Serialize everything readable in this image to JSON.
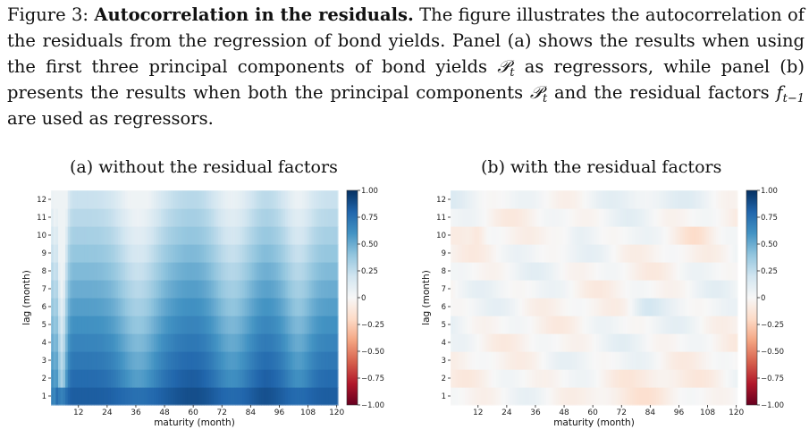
{
  "caption": {
    "figure_label": "Figure 3:",
    "title": "Autocorrelation in the residuals.",
    "seg1": "The figure illustrates the autocorrelation of the residuals from the regression of bond yields. Panel (a) shows the results when using the first three principal components of bond yields",
    "math_P": "𝒫",
    "math_t": "t",
    "seg2": "as regressors, while panel (b) presents the results when both the principal components",
    "seg3": "and the residual factors",
    "math_f": "f",
    "math_fsub": "t−1",
    "seg4": "are used as regressors."
  },
  "chart_data": [
    {
      "type": "heatmap",
      "title": "(a) without the residual factors",
      "xlabel": "maturity (month)",
      "ylabel": "lag (month)",
      "x_ticks": [
        12,
        24,
        36,
        48,
        60,
        72,
        84,
        96,
        108,
        120
      ],
      "y_ticks": [
        1,
        2,
        3,
        4,
        5,
        6,
        7,
        8,
        9,
        10,
        11,
        12
      ],
      "x_range": [
        1,
        120
      ],
      "y_range": [
        1,
        12
      ],
      "colorbar": {
        "ticks": [
          -1.0,
          -0.75,
          -0.5,
          -0.25,
          0,
          0.25,
          0.5,
          0.75,
          1.0
        ],
        "labels": [
          "−1.00",
          "−0.75",
          "−0.50",
          "−0.25",
          "0",
          "0.25",
          "0.50",
          "0.75",
          "1.00"
        ],
        "colormap": "RdBu"
      },
      "pattern": "high at lag 1 (~0.7–0.85) decaying to ~0.1–0.3 at lag 12; lighter bands near maturities 5, 36, 75, 105"
    },
    {
      "type": "heatmap",
      "title": "(b) with the residual factors",
      "xlabel": "maturity (month)",
      "ylabel": "lag (month)",
      "x_ticks": [
        12,
        24,
        36,
        48,
        60,
        72,
        84,
        96,
        108,
        120
      ],
      "y_ticks": [
        1,
        2,
        3,
        4,
        5,
        6,
        7,
        8,
        9,
        10,
        11,
        12
      ],
      "x_range": [
        1,
        120
      ],
      "y_range": [
        1,
        12
      ],
      "colorbar": {
        "ticks": [
          -1.0,
          -0.75,
          -0.5,
          -0.25,
          0,
          0.25,
          0.5,
          0.75,
          1.0
        ],
        "labels": [
          "−1.00",
          "−0.75",
          "−0.50",
          "−0.25",
          "0",
          "0.25",
          "0.50",
          "0.75",
          "1.00"
        ],
        "colormap": "RdBu"
      },
      "pattern": "values near 0 (within about ±0.15) everywhere; slight negative at lag 1–2"
    }
  ]
}
